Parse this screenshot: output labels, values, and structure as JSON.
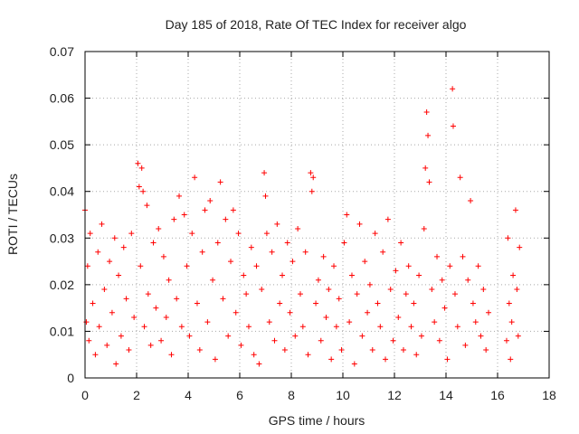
{
  "chart_data": {
    "type": "scatter",
    "title": "Day 185 of 2018, Rate Of TEC Index for receiver algo",
    "xlabel": "GPS time / hours",
    "ylabel": "ROTI / TECUs",
    "xlim": [
      0,
      18
    ],
    "ylim": [
      0,
      0.07
    ],
    "x_ticks": [
      "0",
      "2",
      "4",
      "6",
      "8",
      "10",
      "12",
      "14",
      "16",
      "18"
    ],
    "y_ticks": [
      "0",
      "0.01",
      "0.02",
      "0.03",
      "0.04",
      "0.05",
      "0.06",
      "0.07"
    ],
    "grid": true,
    "marker": "+",
    "color": "#ff0000",
    "series": [
      {
        "points": [
          [
            0.0,
            0.036
          ],
          [
            0.05,
            0.012
          ],
          [
            0.1,
            0.024
          ],
          [
            0.15,
            0.008
          ],
          [
            0.2,
            0.031
          ],
          [
            0.3,
            0.016
          ],
          [
            0.4,
            0.005
          ],
          [
            0.5,
            0.027
          ],
          [
            0.55,
            0.011
          ],
          [
            0.65,
            0.033
          ],
          [
            0.75,
            0.019
          ],
          [
            0.85,
            0.007
          ],
          [
            0.95,
            0.025
          ],
          [
            1.05,
            0.014
          ],
          [
            1.15,
            0.03
          ],
          [
            1.2,
            0.003
          ],
          [
            1.3,
            0.022
          ],
          [
            1.4,
            0.009
          ],
          [
            1.5,
            0.028
          ],
          [
            1.6,
            0.017
          ],
          [
            1.7,
            0.006
          ],
          [
            1.8,
            0.031
          ],
          [
            1.9,
            0.013
          ],
          [
            2.05,
            0.046
          ],
          [
            2.1,
            0.041
          ],
          [
            2.15,
            0.024
          ],
          [
            2.2,
            0.045
          ],
          [
            2.25,
            0.04
          ],
          [
            2.3,
            0.011
          ],
          [
            2.4,
            0.037
          ],
          [
            2.45,
            0.018
          ],
          [
            2.55,
            0.007
          ],
          [
            2.65,
            0.029
          ],
          [
            2.75,
            0.015
          ],
          [
            2.85,
            0.032
          ],
          [
            2.95,
            0.008
          ],
          [
            3.05,
            0.026
          ],
          [
            3.15,
            0.013
          ],
          [
            3.25,
            0.021
          ],
          [
            3.35,
            0.005
          ],
          [
            3.45,
            0.034
          ],
          [
            3.55,
            0.017
          ],
          [
            3.65,
            0.039
          ],
          [
            3.75,
            0.011
          ],
          [
            3.85,
            0.035
          ],
          [
            3.95,
            0.024
          ],
          [
            4.05,
            0.009
          ],
          [
            4.15,
            0.031
          ],
          [
            4.25,
            0.043
          ],
          [
            4.35,
            0.016
          ],
          [
            4.45,
            0.006
          ],
          [
            4.55,
            0.027
          ],
          [
            4.65,
            0.036
          ],
          [
            4.75,
            0.012
          ],
          [
            4.85,
            0.038
          ],
          [
            4.95,
            0.021
          ],
          [
            5.05,
            0.004
          ],
          [
            5.15,
            0.029
          ],
          [
            5.25,
            0.042
          ],
          [
            5.35,
            0.017
          ],
          [
            5.45,
            0.034
          ],
          [
            5.55,
            0.009
          ],
          [
            5.65,
            0.025
          ],
          [
            5.75,
            0.036
          ],
          [
            5.85,
            0.014
          ],
          [
            5.95,
            0.031
          ],
          [
            6.05,
            0.007
          ],
          [
            6.15,
            0.022
          ],
          [
            6.25,
            0.018
          ],
          [
            6.35,
            0.011
          ],
          [
            6.45,
            0.028
          ],
          [
            6.55,
            0.005
          ],
          [
            6.65,
            0.024
          ],
          [
            6.75,
            0.003
          ],
          [
            6.85,
            0.019
          ],
          [
            6.95,
            0.044
          ],
          [
            7.0,
            0.039
          ],
          [
            7.05,
            0.031
          ],
          [
            7.15,
            0.012
          ],
          [
            7.25,
            0.027
          ],
          [
            7.35,
            0.008
          ],
          [
            7.45,
            0.033
          ],
          [
            7.55,
            0.016
          ],
          [
            7.65,
            0.022
          ],
          [
            7.75,
            0.006
          ],
          [
            7.85,
            0.029
          ],
          [
            7.95,
            0.014
          ],
          [
            8.05,
            0.025
          ],
          [
            8.15,
            0.009
          ],
          [
            8.25,
            0.032
          ],
          [
            8.35,
            0.018
          ],
          [
            8.45,
            0.011
          ],
          [
            8.55,
            0.027
          ],
          [
            8.65,
            0.005
          ],
          [
            8.75,
            0.044
          ],
          [
            8.8,
            0.04
          ],
          [
            8.85,
            0.043
          ],
          [
            8.95,
            0.016
          ],
          [
            9.05,
            0.021
          ],
          [
            9.15,
            0.008
          ],
          [
            9.25,
            0.026
          ],
          [
            9.35,
            0.013
          ],
          [
            9.45,
            0.019
          ],
          [
            9.55,
            0.004
          ],
          [
            9.65,
            0.024
          ],
          [
            9.75,
            0.011
          ],
          [
            9.85,
            0.017
          ],
          [
            9.95,
            0.006
          ],
          [
            10.05,
            0.029
          ],
          [
            10.15,
            0.035
          ],
          [
            10.25,
            0.012
          ],
          [
            10.35,
            0.022
          ],
          [
            10.45,
            0.003
          ],
          [
            10.55,
            0.018
          ],
          [
            10.65,
            0.033
          ],
          [
            10.75,
            0.009
          ],
          [
            10.85,
            0.025
          ],
          [
            10.95,
            0.014
          ],
          [
            11.05,
            0.02
          ],
          [
            11.15,
            0.006
          ],
          [
            11.25,
            0.031
          ],
          [
            11.35,
            0.016
          ],
          [
            11.45,
            0.011
          ],
          [
            11.55,
            0.027
          ],
          [
            11.65,
            0.004
          ],
          [
            11.75,
            0.034
          ],
          [
            11.85,
            0.019
          ],
          [
            11.95,
            0.008
          ],
          [
            12.05,
            0.023
          ],
          [
            12.15,
            0.013
          ],
          [
            12.25,
            0.029
          ],
          [
            12.35,
            0.006
          ],
          [
            12.45,
            0.018
          ],
          [
            12.55,
            0.024
          ],
          [
            12.65,
            0.011
          ],
          [
            12.75,
            0.016
          ],
          [
            12.85,
            0.005
          ],
          [
            12.95,
            0.022
          ],
          [
            13.05,
            0.009
          ],
          [
            13.15,
            0.032
          ],
          [
            13.2,
            0.045
          ],
          [
            13.25,
            0.057
          ],
          [
            13.3,
            0.052
          ],
          [
            13.35,
            0.042
          ],
          [
            13.45,
            0.019
          ],
          [
            13.55,
            0.012
          ],
          [
            13.65,
            0.026
          ],
          [
            13.75,
            0.008
          ],
          [
            13.85,
            0.021
          ],
          [
            13.95,
            0.015
          ],
          [
            14.05,
            0.004
          ],
          [
            14.15,
            0.024
          ],
          [
            14.25,
            0.062
          ],
          [
            14.28,
            0.054
          ],
          [
            14.35,
            0.018
          ],
          [
            14.45,
            0.011
          ],
          [
            14.55,
            0.043
          ],
          [
            14.65,
            0.026
          ],
          [
            14.75,
            0.007
          ],
          [
            14.85,
            0.021
          ],
          [
            14.95,
            0.038
          ],
          [
            15.05,
            0.016
          ],
          [
            15.15,
            0.012
          ],
          [
            15.25,
            0.024
          ],
          [
            15.35,
            0.009
          ],
          [
            15.45,
            0.019
          ],
          [
            15.55,
            0.006
          ],
          [
            15.65,
            0.014
          ],
          [
            16.35,
            0.008
          ],
          [
            16.4,
            0.03
          ],
          [
            16.45,
            0.016
          ],
          [
            16.5,
            0.004
          ],
          [
            16.55,
            0.012
          ],
          [
            16.6,
            0.022
          ],
          [
            16.7,
            0.036
          ],
          [
            16.75,
            0.019
          ],
          [
            16.8,
            0.009
          ],
          [
            16.85,
            0.028
          ]
        ]
      }
    ]
  }
}
